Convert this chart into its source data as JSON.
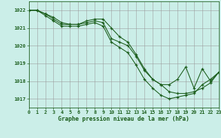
{
  "title": "Graphe pression niveau de la mer (hPa)",
  "background_color": "#cbeee8",
  "line_color": "#1a5c1a",
  "xlim": [
    0,
    23
  ],
  "ylim": [
    1016.5,
    1022.5
  ],
  "yticks": [
    1017,
    1018,
    1019,
    1020,
    1021,
    1022
  ],
  "xticks": [
    0,
    1,
    2,
    3,
    4,
    5,
    6,
    7,
    8,
    9,
    10,
    11,
    12,
    13,
    14,
    15,
    16,
    17,
    18,
    19,
    20,
    21,
    22,
    23
  ],
  "series": [
    [
      1022.0,
      1022.0,
      1021.8,
      1021.6,
      1021.3,
      1021.2,
      1021.2,
      1021.3,
      1021.4,
      1021.3,
      1020.4,
      1020.2,
      1020.0,
      1019.4,
      1018.6,
      1018.1,
      1017.8,
      1017.4,
      1017.3,
      1017.3,
      1017.4,
      1017.6,
      1017.9,
      1018.5
    ],
    [
      1022.0,
      1022.0,
      1021.8,
      1021.5,
      1021.2,
      1021.2,
      1021.2,
      1021.4,
      1021.5,
      1021.5,
      1021.0,
      1020.5,
      1020.2,
      1019.5,
      1018.7,
      1018.1,
      1017.8,
      1017.8,
      1018.1,
      1018.8,
      1017.6,
      1018.7,
      1018.0,
      1018.5
    ],
    [
      1022.0,
      1022.0,
      1021.7,
      1021.4,
      1021.1,
      1021.1,
      1021.1,
      1021.2,
      1021.3,
      1021.1,
      1020.2,
      1019.9,
      1019.6,
      1018.9,
      1018.1,
      1017.6,
      1017.2,
      1017.0,
      1017.1,
      1017.2,
      1017.3,
      1017.8,
      1018.1,
      1018.5
    ]
  ]
}
